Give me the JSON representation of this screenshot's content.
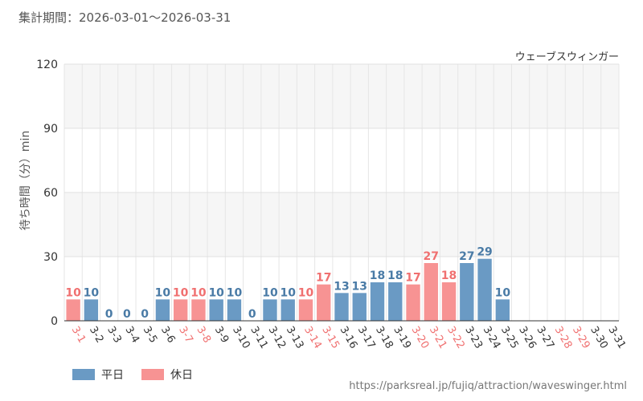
{
  "header": {
    "period_label": "集計期間：2026-03-01～2026-03-31"
  },
  "legend": {
    "weekday": "平日",
    "holiday": "休日"
  },
  "footer": {
    "source_url": "https://parksreal.jp/fujiq/attraction/waveswinger.html"
  },
  "colors": {
    "weekday": "#6a9ac4",
    "holiday": "#f79393",
    "weekday_label": "#4a7ba6",
    "holiday_label": "#f07070",
    "axis_label": "#555555"
  },
  "chart_data": {
    "type": "bar",
    "title": "ウェーブスウィンガー",
    "ylabel": "待ち時間（分）min",
    "xlabel": "",
    "ylim": [
      0,
      120
    ],
    "yticks": [
      0,
      30,
      60,
      90,
      120
    ],
    "categories": [
      "3-1",
      "3-2",
      "3-3",
      "3-4",
      "3-5",
      "3-6",
      "3-7",
      "3-8",
      "3-9",
      "3-10",
      "3-11",
      "3-12",
      "3-13",
      "3-14",
      "3-15",
      "3-16",
      "3-17",
      "3-18",
      "3-19",
      "3-20",
      "3-21",
      "3-22",
      "3-23",
      "3-24",
      "3-25",
      "3-26",
      "3-27",
      "3-28",
      "3-29",
      "3-30",
      "3-31"
    ],
    "day_types": [
      "holiday",
      "weekday",
      "weekday",
      "weekday",
      "weekday",
      "weekday",
      "holiday",
      "holiday",
      "weekday",
      "weekday",
      "weekday",
      "weekday",
      "weekday",
      "holiday",
      "holiday",
      "weekday",
      "weekday",
      "weekday",
      "weekday",
      "holiday",
      "holiday",
      "holiday",
      "weekday",
      "weekday",
      "weekday",
      "weekday",
      "weekday",
      "holiday",
      "holiday",
      "weekday",
      "weekday"
    ],
    "values": [
      10,
      10,
      0,
      0,
      0,
      10,
      10,
      10,
      10,
      10,
      0,
      10,
      10,
      10,
      17,
      13,
      13,
      18,
      18,
      17,
      27,
      18,
      27,
      29,
      10,
      null,
      null,
      null,
      null,
      null,
      null
    ]
  }
}
